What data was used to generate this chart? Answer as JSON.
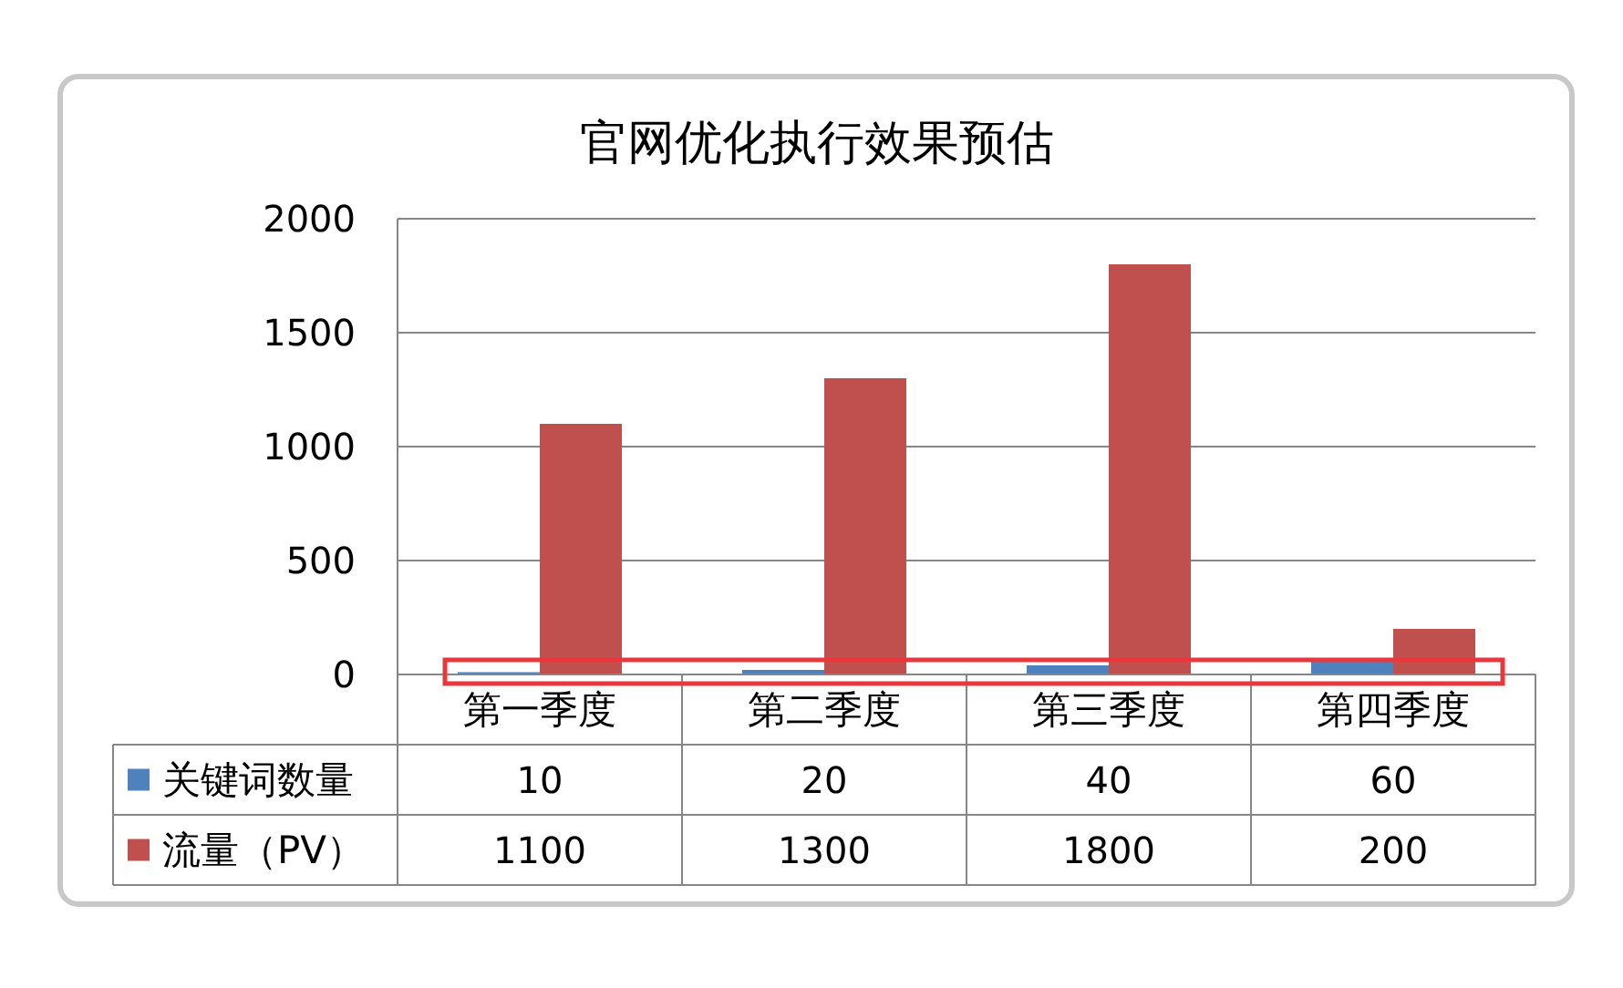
{
  "chart_data": {
    "type": "bar",
    "title": "官网优化执行效果预估",
    "categories": [
      "第一季度",
      "第二季度",
      "第三季度",
      "第四季度"
    ],
    "series": [
      {
        "name": "关键词数量",
        "color": "#4f81bd",
        "values": [
          10,
          20,
          40,
          60
        ]
      },
      {
        "name": "流量（PV）",
        "color": "#c0504d",
        "values": [
          1100,
          1300,
          1800,
          200
        ]
      }
    ],
    "ylim": [
      0,
      2000
    ],
    "yticks": [
      0,
      500,
      1000,
      1500,
      2000
    ],
    "grid": "y",
    "legend": "bottom",
    "data_labels": true
  }
}
